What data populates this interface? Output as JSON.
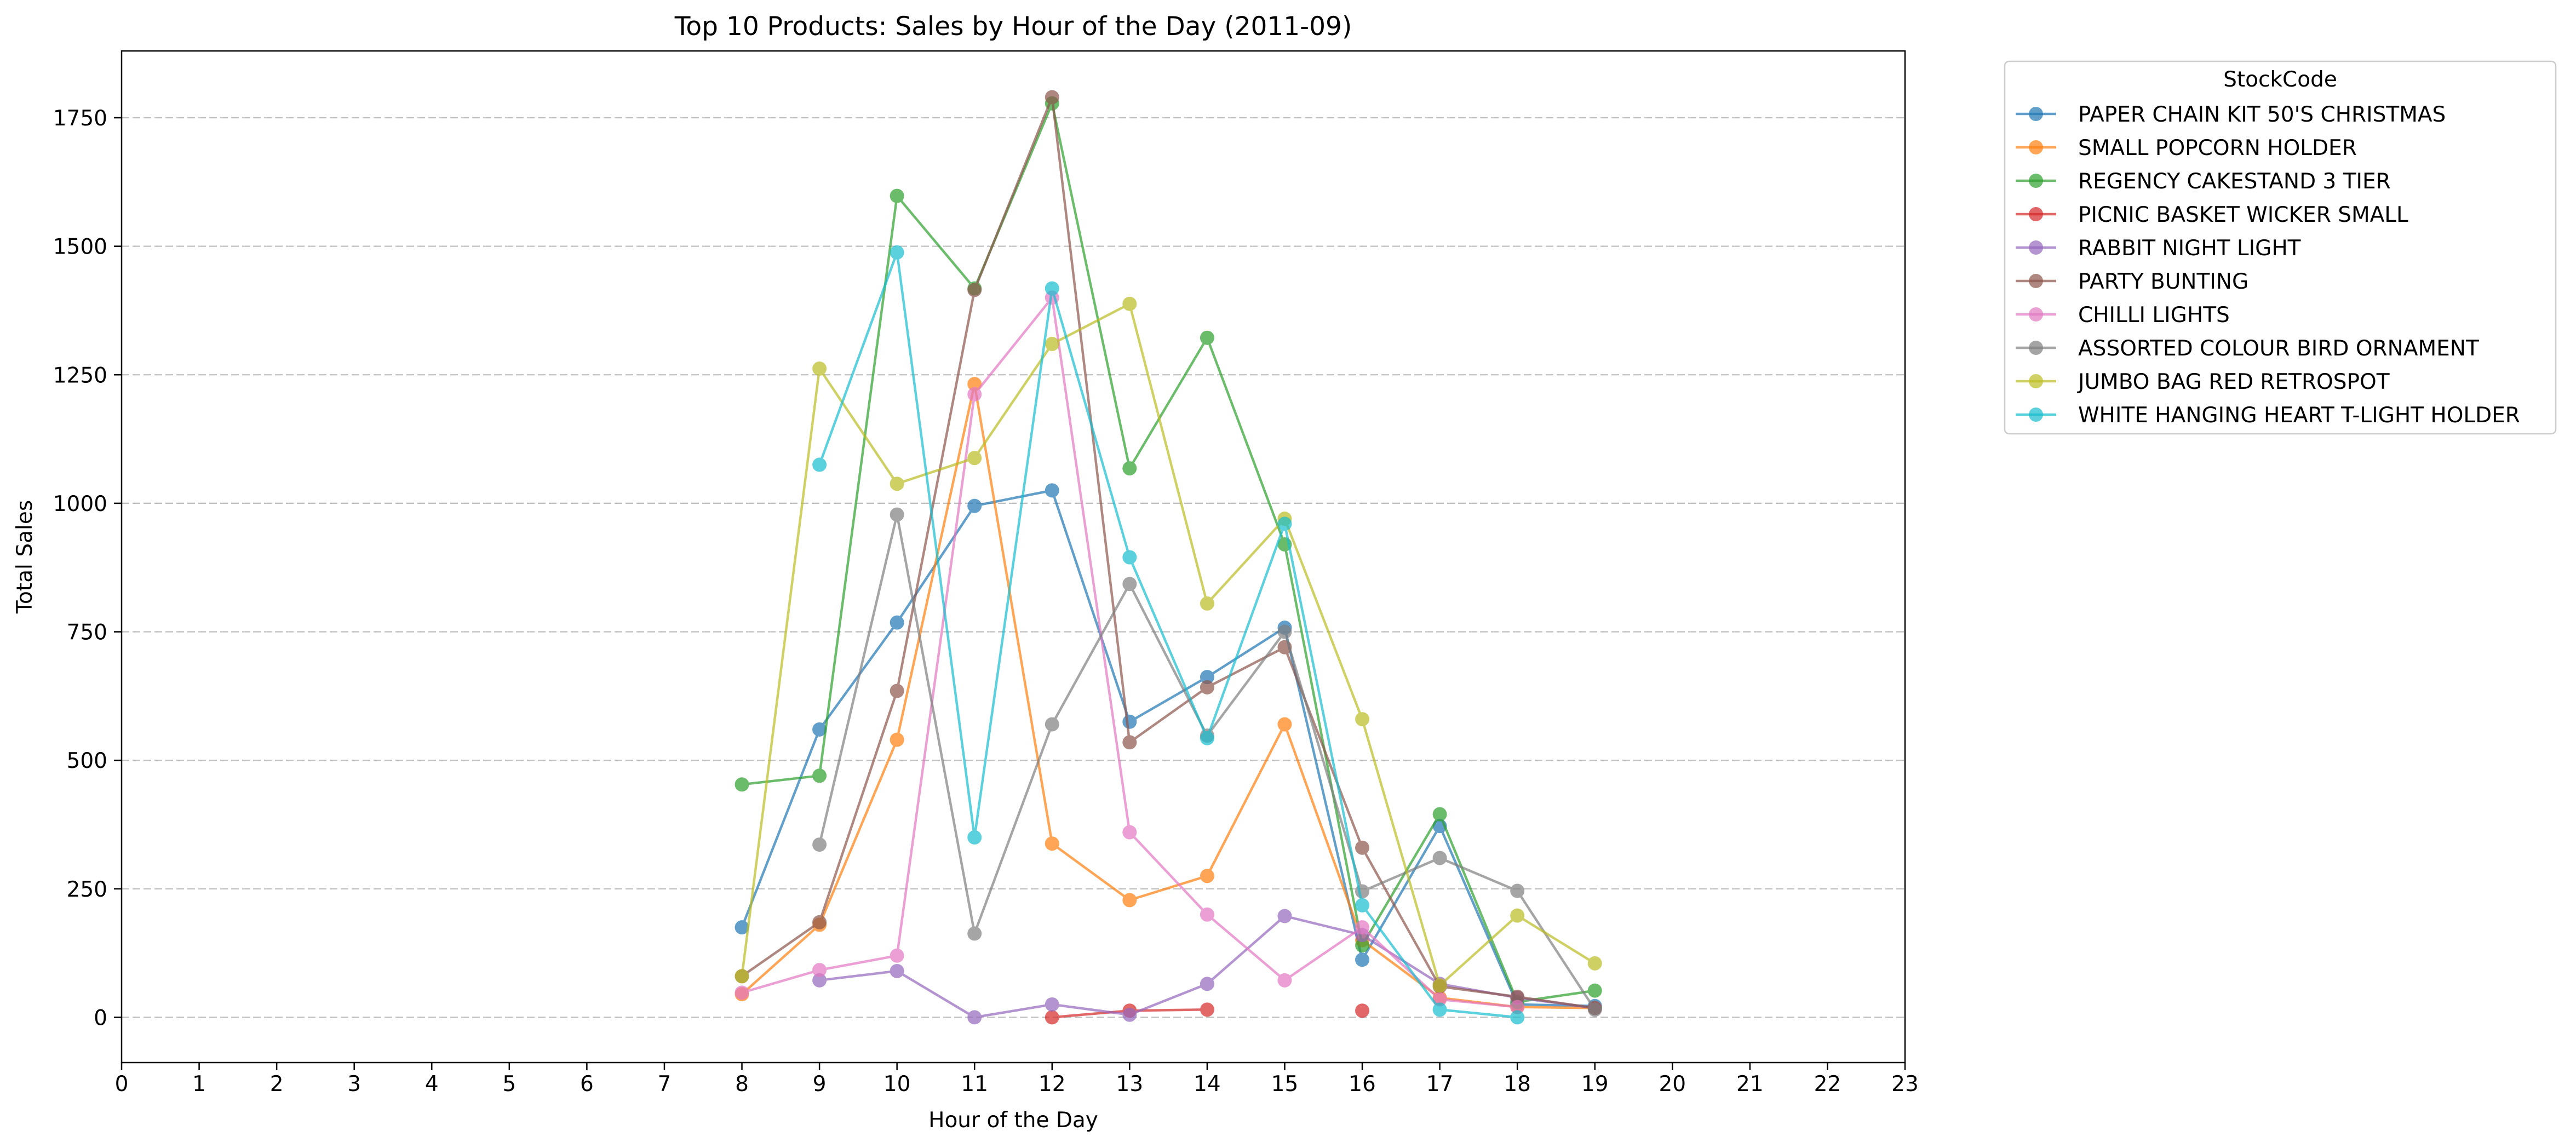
{
  "chart_data": {
    "type": "line",
    "title": "Top 10 Products: Sales by Hour of the Day (2011-09)",
    "xlabel": "Hour of the Day",
    "ylabel": "Total Sales",
    "xlim": [
      0,
      23
    ],
    "ylim": [
      -88,
      1880
    ],
    "x_ticks": [
      0,
      1,
      2,
      3,
      4,
      5,
      6,
      7,
      8,
      9,
      10,
      11,
      12,
      13,
      14,
      15,
      16,
      17,
      18,
      19,
      20,
      21,
      22,
      23
    ],
    "y_ticks": [
      0,
      250,
      500,
      750,
      1000,
      1250,
      1500,
      1750
    ],
    "grid": "horizontal dashed",
    "legend_title": "StockCode",
    "legend_placement": "outside right, top",
    "series": [
      {
        "name": "PAPER CHAIN KIT 50'S CHRISTMAS",
        "color": "#1f77b4",
        "points": [
          [
            8,
            175
          ],
          [
            9,
            560
          ],
          [
            10,
            768
          ],
          [
            11,
            995
          ],
          [
            12,
            1025
          ],
          [
            13,
            575
          ],
          [
            14,
            662
          ],
          [
            15,
            758
          ],
          [
            16,
            112
          ],
          [
            17,
            372
          ],
          [
            18,
            25
          ],
          [
            19,
            22
          ]
        ]
      },
      {
        "name": "SMALL POPCORN HOLDER",
        "color": "#ff7f0e",
        "points": [
          [
            8,
            45
          ],
          [
            9,
            180
          ],
          [
            10,
            540
          ],
          [
            11,
            1232
          ],
          [
            12,
            338
          ],
          [
            13,
            228
          ],
          [
            14,
            275
          ],
          [
            15,
            570
          ],
          [
            16,
            150
          ],
          [
            17,
            38
          ],
          [
            18,
            20
          ],
          [
            19,
            18
          ]
        ]
      },
      {
        "name": "REGENCY CAKESTAND 3 TIER",
        "color": "#2ca02c",
        "points": [
          [
            8,
            453
          ],
          [
            9,
            470
          ],
          [
            10,
            1598
          ],
          [
            11,
            1418
          ],
          [
            12,
            1778
          ],
          [
            13,
            1068
          ],
          [
            14,
            1322
          ],
          [
            15,
            920
          ],
          [
            16,
            140
          ],
          [
            17,
            395
          ],
          [
            18,
            30
          ],
          [
            19,
            52
          ]
        ]
      },
      {
        "name": "PICNIC BASKET WICKER SMALL",
        "color": "#d62728",
        "points": [
          [
            12,
            0
          ],
          [
            13,
            13
          ],
          [
            14,
            15
          ],
          [
            16,
            13
          ]
        ],
        "segments": [
          [
            0,
            1,
            2
          ],
          [
            3
          ]
        ]
      },
      {
        "name": "RABBIT NIGHT LIGHT",
        "color": "#9467bd",
        "points": [
          [
            9,
            72
          ],
          [
            10,
            90
          ],
          [
            11,
            0
          ],
          [
            12,
            25
          ],
          [
            13,
            5
          ],
          [
            14,
            65
          ],
          [
            15,
            197
          ],
          [
            16,
            160
          ],
          [
            17,
            65
          ],
          [
            18,
            38
          ],
          [
            19,
            18
          ]
        ]
      },
      {
        "name": "PARTY BUNTING",
        "color": "#8c564b",
        "points": [
          [
            8,
            80
          ],
          [
            9,
            185
          ],
          [
            10,
            635
          ],
          [
            11,
            1415
          ],
          [
            12,
            1790
          ],
          [
            13,
            535
          ],
          [
            14,
            642
          ],
          [
            15,
            720
          ],
          [
            16,
            330
          ],
          [
            17,
            60
          ],
          [
            18,
            40
          ],
          [
            19,
            18
          ]
        ]
      },
      {
        "name": "CHILLI LIGHTS",
        "color": "#e377c2",
        "points": [
          [
            8,
            48
          ],
          [
            9,
            92
          ],
          [
            10,
            120
          ],
          [
            11,
            1212
          ],
          [
            12,
            1400
          ],
          [
            13,
            360
          ],
          [
            14,
            200
          ],
          [
            15,
            72
          ],
          [
            16,
            175
          ],
          [
            17,
            35
          ],
          [
            18,
            20
          ]
        ]
      },
      {
        "name": "ASSORTED COLOUR BIRD ORNAMENT",
        "color": "#7f7f7f",
        "points": [
          [
            9,
            336
          ],
          [
            10,
            978
          ],
          [
            11,
            163
          ],
          [
            12,
            570
          ],
          [
            13,
            843
          ],
          [
            14,
            548
          ],
          [
            15,
            750
          ],
          [
            16,
            245
          ],
          [
            17,
            310
          ],
          [
            18,
            246
          ],
          [
            19,
            15
          ]
        ]
      },
      {
        "name": "JUMBO BAG RED RETROSPOT",
        "color": "#bcbd22",
        "points": [
          [
            8,
            80
          ],
          [
            9,
            1262
          ],
          [
            10,
            1038
          ],
          [
            11,
            1088
          ],
          [
            12,
            1310
          ],
          [
            13,
            1388
          ],
          [
            14,
            805
          ],
          [
            15,
            970
          ],
          [
            16,
            580
          ],
          [
            17,
            62
          ],
          [
            18,
            198
          ],
          [
            19,
            105
          ]
        ]
      },
      {
        "name": "WHITE HANGING HEART T-LIGHT HOLDER",
        "color": "#17becf",
        "points": [
          [
            9,
            1075
          ],
          [
            10,
            1488
          ],
          [
            11,
            350
          ],
          [
            12,
            1418
          ],
          [
            13,
            895
          ],
          [
            14,
            543
          ],
          [
            15,
            960
          ],
          [
            16,
            218
          ],
          [
            17,
            15
          ],
          [
            18,
            0
          ]
        ]
      }
    ]
  }
}
